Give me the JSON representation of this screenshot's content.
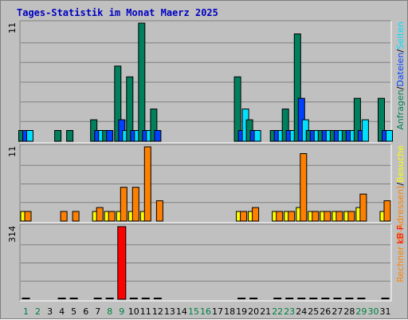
{
  "title": "Tages-Statistik im Monat Maerz 2025",
  "colors": {
    "anfragen": "#00805c",
    "dateien": "#0040ff",
    "seiten": "#00e0ff",
    "rechner": "#ff8000",
    "besuche": "#ffff00",
    "kbf": "#ff0000",
    "title": "#0000c0",
    "weekend": "#008040",
    "weekday": "#000000"
  },
  "chart_data": [
    {
      "type": "bar",
      "name": "requests",
      "side_label": [
        {
          "text": "Anfragen",
          "color_key": "anfragen"
        },
        {
          "text": "/",
          "color_key": "weekday"
        },
        {
          "text": "Dateien",
          "color_key": "dateien"
        },
        {
          "text": "/",
          "color_key": "weekday"
        },
        {
          "text": "Seiten",
          "color_key": "seiten"
        }
      ],
      "ymax_label": "11",
      "ylim": [
        0,
        11
      ],
      "categories": [
        "1",
        "2",
        "3",
        "4",
        "5",
        "6",
        "7",
        "8",
        "9",
        "10",
        "11",
        "12",
        "13",
        "14",
        "15",
        "16",
        "17",
        "18",
        "19",
        "20",
        "21",
        "22",
        "23",
        "24",
        "25",
        "26",
        "27",
        "28",
        "29",
        "30",
        "31"
      ],
      "series": [
        {
          "key": "anfragen",
          "values": [
            1,
            0,
            0,
            1,
            1,
            0,
            2,
            1,
            7,
            6,
            11,
            3,
            0,
            0,
            0,
            0,
            0,
            0,
            6,
            2,
            0,
            1,
            3,
            10,
            1,
            1,
            1,
            1,
            4,
            0,
            4
          ]
        },
        {
          "key": "dateien",
          "values": [
            1,
            0,
            0,
            0,
            0,
            0,
            1,
            1,
            2,
            1,
            1,
            1,
            0,
            0,
            0,
            0,
            0,
            0,
            1,
            1,
            0,
            1,
            1,
            4,
            1,
            1,
            1,
            1,
            1,
            0,
            1
          ]
        },
        {
          "key": "seiten",
          "values": [
            1,
            0,
            0,
            0,
            0,
            0,
            1,
            0,
            1,
            1,
            1,
            0,
            0,
            0,
            0,
            0,
            0,
            0,
            3,
            1,
            0,
            1,
            1,
            2,
            1,
            1,
            1,
            1,
            2,
            0,
            1
          ]
        }
      ]
    },
    {
      "type": "bar",
      "name": "visitors",
      "side_label": [
        {
          "text": "Rechner (IP-Adressen)",
          "color_key": "rechner"
        },
        {
          "text": "/",
          "color_key": "weekday"
        },
        {
          "text": "Besuche",
          "color_key": "besuche"
        }
      ],
      "ymax_label": "11",
      "ylim": [
        0,
        11
      ],
      "categories": [
        "1",
        "2",
        "3",
        "4",
        "5",
        "6",
        "7",
        "8",
        "9",
        "10",
        "11",
        "12",
        "13",
        "14",
        "15",
        "16",
        "17",
        "18",
        "19",
        "20",
        "21",
        "22",
        "23",
        "24",
        "25",
        "26",
        "27",
        "28",
        "29",
        "30",
        "31"
      ],
      "series": [
        {
          "key": "besuche",
          "values": [
            1,
            0,
            0,
            0,
            0,
            0,
            1,
            1,
            1,
            1,
            1,
            0,
            0,
            0,
            0,
            0,
            0,
            0,
            1,
            1,
            0,
            1,
            1,
            2,
            1,
            1,
            1,
            1,
            2,
            0,
            1
          ]
        },
        {
          "key": "rechner",
          "values": [
            1,
            0,
            0,
            1,
            1,
            0,
            2,
            1,
            5,
            5,
            11,
            3,
            0,
            0,
            0,
            0,
            0,
            0,
            1,
            2,
            0,
            1,
            1,
            10,
            1,
            1,
            1,
            1,
            4,
            0,
            3
          ]
        }
      ]
    },
    {
      "type": "bar",
      "name": "traffic",
      "side_label": [
        {
          "text": "kB F",
          "color_key": "kbf"
        }
      ],
      "ymax_label": "314",
      "ylim": [
        0,
        314
      ],
      "categories": [
        "1",
        "2",
        "3",
        "4",
        "5",
        "6",
        "7",
        "8",
        "9",
        "10",
        "11",
        "12",
        "13",
        "14",
        "15",
        "16",
        "17",
        "18",
        "19",
        "20",
        "21",
        "22",
        "23",
        "24",
        "25",
        "26",
        "27",
        "28",
        "29",
        "30",
        "31"
      ],
      "series": [
        {
          "key": "kbf",
          "values": [
            1,
            0,
            0,
            1,
            1,
            0,
            1,
            1,
            314,
            1,
            1,
            1,
            0,
            0,
            0,
            0,
            0,
            0,
            1,
            1,
            0,
            1,
            1,
            1,
            1,
            1,
            1,
            1,
            1,
            0,
            1
          ]
        }
      ]
    }
  ],
  "x_axis": {
    "labels": [
      "1",
      "2",
      "3",
      "4",
      "5",
      "6",
      "7",
      "8",
      "9",
      "10",
      "11",
      "12",
      "13",
      "14",
      "15",
      "16",
      "17",
      "18",
      "19",
      "20",
      "21",
      "22",
      "23",
      "24",
      "25",
      "26",
      "27",
      "28",
      "29",
      "30",
      "31"
    ],
    "weekend": [
      1,
      2,
      8,
      9,
      15,
      16,
      22,
      23,
      29,
      30
    ]
  }
}
